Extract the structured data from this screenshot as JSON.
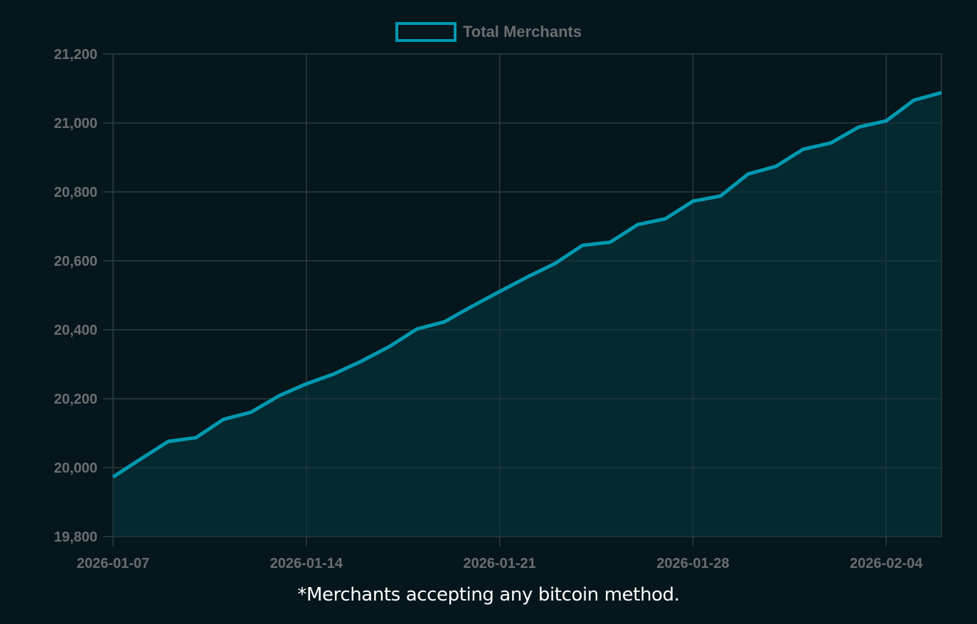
{
  "legend": {
    "label": "Total Merchants",
    "swatch_color": "#0099b0"
  },
  "footnote": "*Merchants accepting any bitcoin method.",
  "colors": {
    "background": "#05161c",
    "line": "#0099b0",
    "fill": "#052d35",
    "grid": "#2a3a3f",
    "tick_text": "#6b6e70"
  },
  "chart_data": {
    "type": "area",
    "title": "",
    "xlabel": "",
    "ylabel": "",
    "legend": [
      "Total Merchants"
    ],
    "legend_position": "top",
    "grid": true,
    "ylim": [
      19800,
      21200
    ],
    "y_ticks": [
      19800,
      20000,
      20200,
      20400,
      20600,
      20800,
      21000,
      21200
    ],
    "y_tick_labels": [
      "19,800",
      "20,000",
      "20,200",
      "20,400",
      "20,600",
      "20,800",
      "21,000",
      "21,200"
    ],
    "x_tick_labels": [
      "2026-01-07",
      "2026-01-14",
      "2026-01-21",
      "2026-01-28",
      "2026-02-04"
    ],
    "x": [
      "2026-01-07",
      "2026-01-08",
      "2026-01-09",
      "2026-01-10",
      "2026-01-11",
      "2026-01-12",
      "2026-01-13",
      "2026-01-14",
      "2026-01-15",
      "2026-01-16",
      "2026-01-17",
      "2026-01-18",
      "2026-01-19",
      "2026-01-20",
      "2026-01-21",
      "2026-01-22",
      "2026-01-23",
      "2026-01-24",
      "2026-01-25",
      "2026-01-26",
      "2026-01-27",
      "2026-01-28",
      "2026-01-29",
      "2026-01-30",
      "2026-01-31",
      "2026-02-01",
      "2026-02-02",
      "2026-02-03",
      "2026-02-04",
      "2026-02-05",
      "2026-02-06"
    ],
    "series": [
      {
        "name": "Total Merchants",
        "values": [
          19973,
          20025,
          20076,
          20087,
          20140,
          20161,
          20208,
          20243,
          20272,
          20309,
          20351,
          20402,
          20423,
          20468,
          20511,
          20553,
          20592,
          20645,
          20654,
          20705,
          20722,
          20773,
          20788,
          20852,
          20874,
          20924,
          20942,
          20988,
          21006,
          21066,
          21088
        ]
      }
    ]
  }
}
